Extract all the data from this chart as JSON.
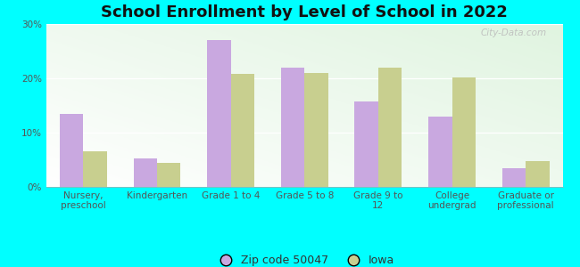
{
  "title": "School Enrollment by Level of School in 2022",
  "categories": [
    "Nursery,\npreschool",
    "Kindergarten",
    "Grade 1 to 4",
    "Grade 5 to 8",
    "Grade 9 to\n12",
    "College\nundergrad",
    "Graduate or\nprofessional"
  ],
  "zip_values": [
    13.5,
    5.3,
    27.0,
    22.0,
    15.8,
    13.0,
    3.4
  ],
  "iowa_values": [
    6.5,
    4.5,
    20.8,
    21.0,
    22.0,
    20.2,
    4.7
  ],
  "zip_color": "#C9A8E0",
  "iowa_color": "#C8CF8F",
  "background_color": "#00FFFF",
  "ylim": [
    0,
    30
  ],
  "yticks": [
    0,
    10,
    20,
    30
  ],
  "ytick_labels": [
    "0%",
    "10%",
    "20%",
    "30%"
  ],
  "legend_label_zip": "Zip code 50047",
  "legend_label_iowa": "Iowa",
  "title_fontsize": 13,
  "tick_fontsize": 7.5,
  "legend_fontsize": 9,
  "bar_width": 0.32,
  "watermark": "City-Data.com"
}
